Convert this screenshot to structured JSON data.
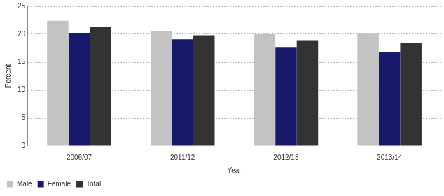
{
  "chart_data": {
    "type": "bar",
    "x_label": "Year",
    "y_label": "Percent",
    "categories": [
      "2006/07",
      "2011/12",
      "2012/13",
      "2013/14"
    ],
    "series": [
      {
        "name": "Male",
        "color": "#c3c3c3",
        "values": [
          22.4,
          20.5,
          20.0,
          20.1
        ]
      },
      {
        "name": "Female",
        "color": "#17196b",
        "values": [
          20.2,
          19.1,
          17.6,
          16.8
        ]
      },
      {
        "name": "Total",
        "color": "#333333",
        "values": [
          21.3,
          19.8,
          18.8,
          18.5
        ]
      }
    ],
    "ylim": [
      0,
      25
    ],
    "yticks": [
      0,
      5,
      10,
      15,
      20,
      25
    ],
    "grid": true,
    "legend": "bottom"
  }
}
